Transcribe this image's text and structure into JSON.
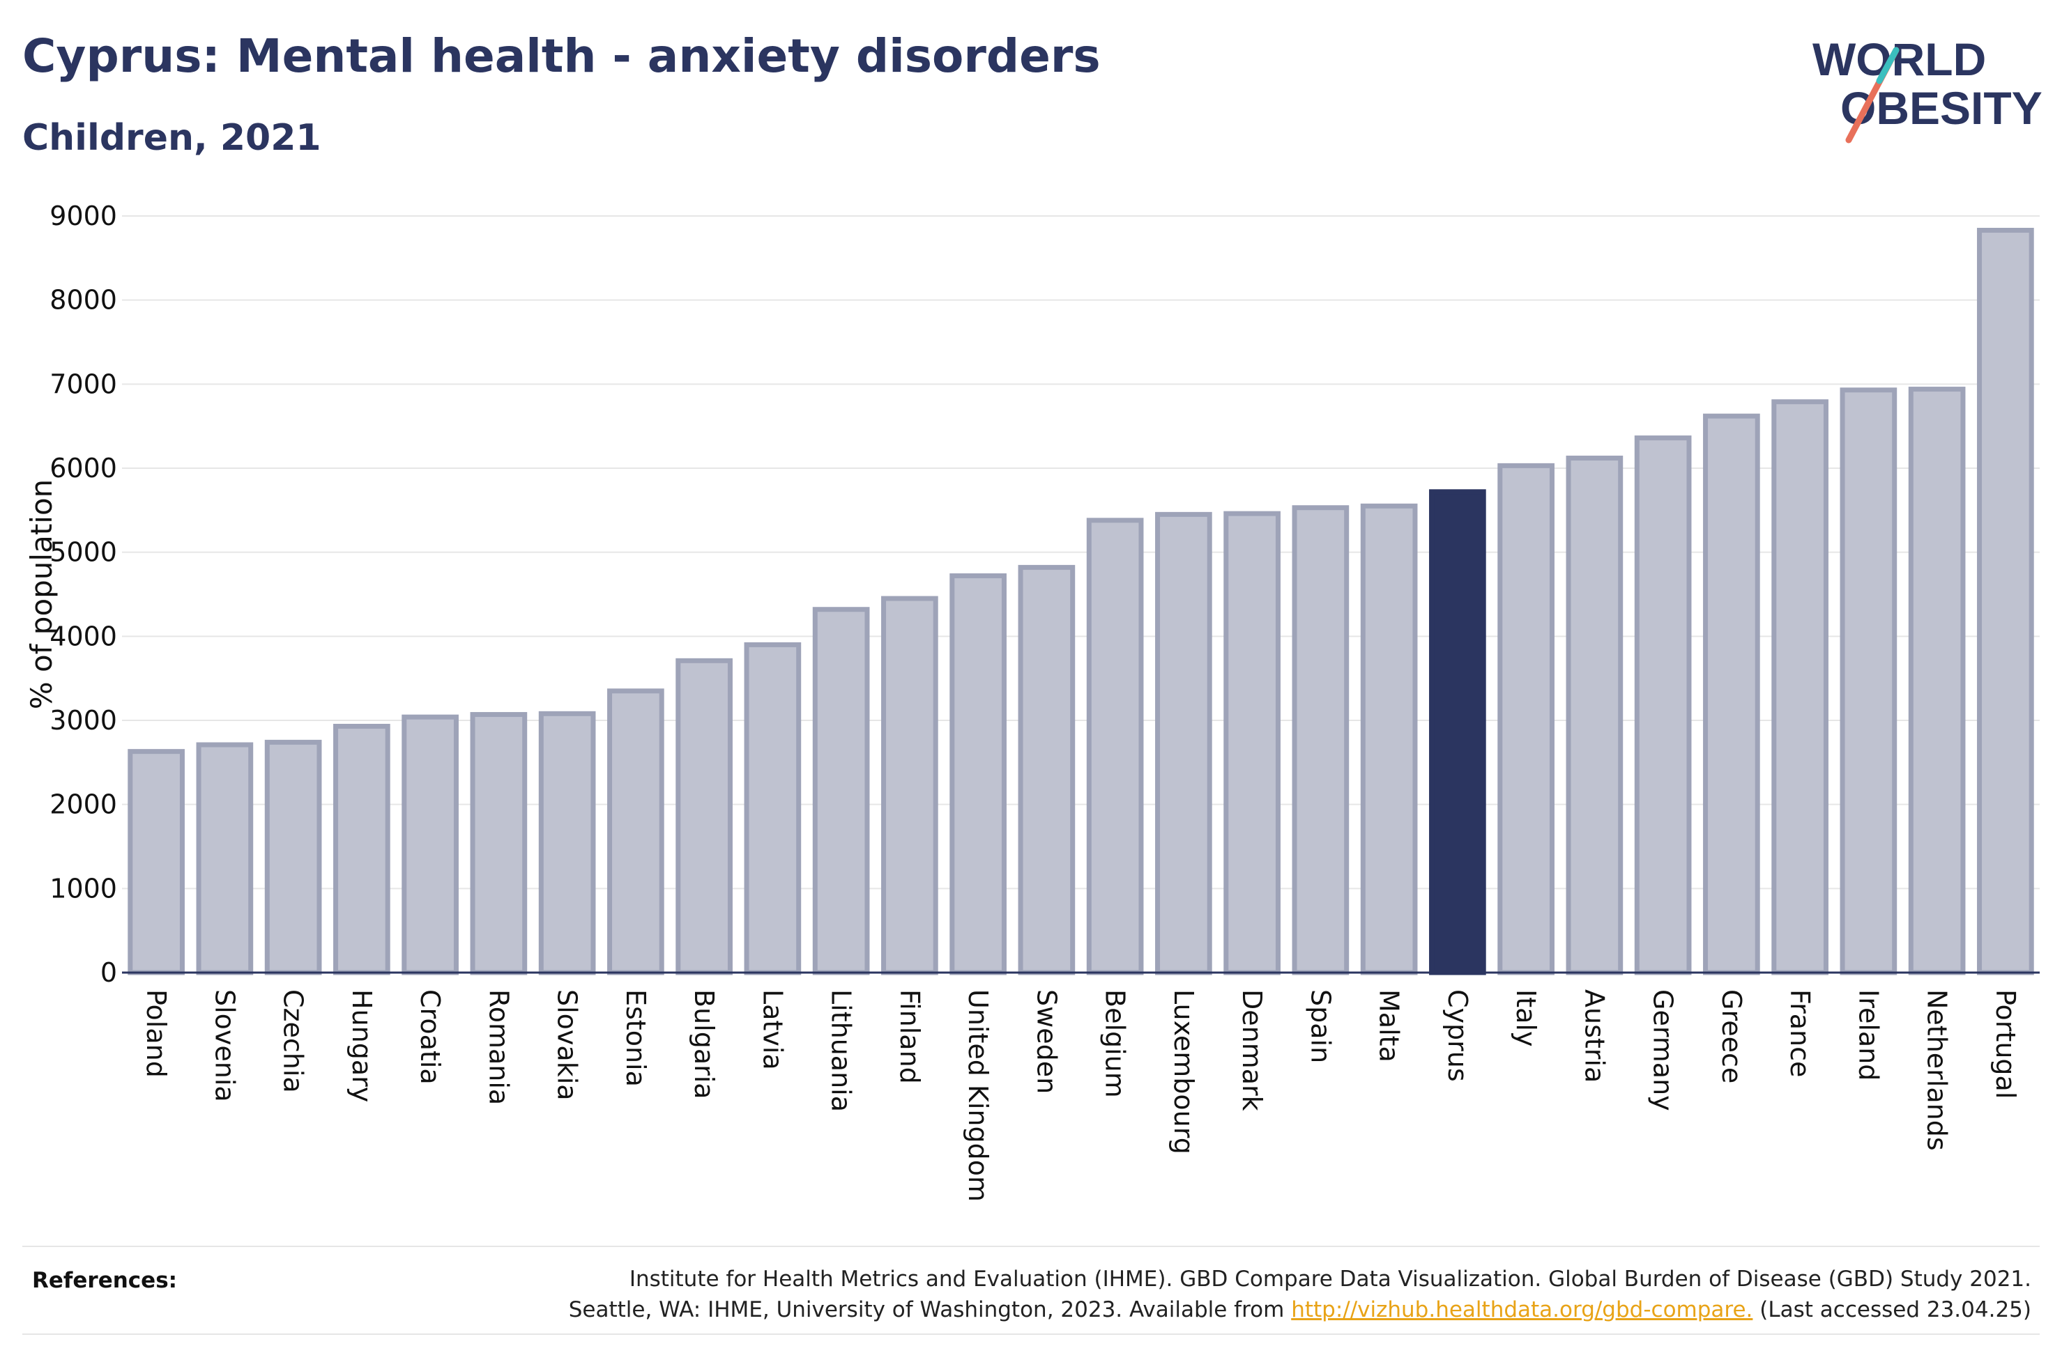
{
  "header": {
    "title": "Cyprus: Mental health - anxiety disorders",
    "subtitle": "Children, 2021"
  },
  "logo": {
    "line1": "WORLD",
    "line2": "OBESITY"
  },
  "colors": {
    "bar": "#bfc2d0",
    "bar_edge": "#9ea3b8",
    "highlight": "#2b3560",
    "text": "#2b3560",
    "link": "#e8a317",
    "logo_slash_teal": "#3bbfbf",
    "logo_slash_coral": "#e8705a"
  },
  "chart_data": {
    "type": "bar",
    "ylabel": "% of population",
    "xlabel": "",
    "ylim": [
      0,
      9000
    ],
    "yticks": [
      0,
      1000,
      2000,
      3000,
      4000,
      5000,
      6000,
      7000,
      8000,
      9000
    ],
    "grid": true,
    "highlight": "Cyprus",
    "categories": [
      "Poland",
      "Slovenia",
      "Czechia",
      "Hungary",
      "Croatia",
      "Romania",
      "Slovakia",
      "Estonia",
      "Bulgaria",
      "Latvia",
      "Lithuania",
      "Finland",
      "United Kingdom",
      "Sweden",
      "Belgium",
      "Luxembourg",
      "Denmark",
      "Spain",
      "Malta",
      "Cyprus",
      "Italy",
      "Austria",
      "Germany",
      "Greece",
      "France",
      "Ireland",
      "Netherlands",
      "Portugal"
    ],
    "values": [
      2630,
      2710,
      2740,
      2930,
      3040,
      3070,
      3080,
      3350,
      3710,
      3900,
      4320,
      4450,
      4720,
      4820,
      5380,
      5450,
      5460,
      5530,
      5550,
      5720,
      6030,
      6120,
      6360,
      6620,
      6790,
      6930,
      6940,
      8830
    ]
  },
  "references": {
    "label": "References:",
    "line1": "Institute for Health Metrics and Evaluation (IHME). GBD Compare Data Visualization. Global Burden of Disease (GBD) Study 2021.",
    "line2_prefix": "Seattle, WA: IHME, University of Washington, 2023. Available from ",
    "link": "http://vizhub.healthdata.org/gbd-compare.",
    "line2_suffix": " (Last accessed 23.04.25)"
  }
}
